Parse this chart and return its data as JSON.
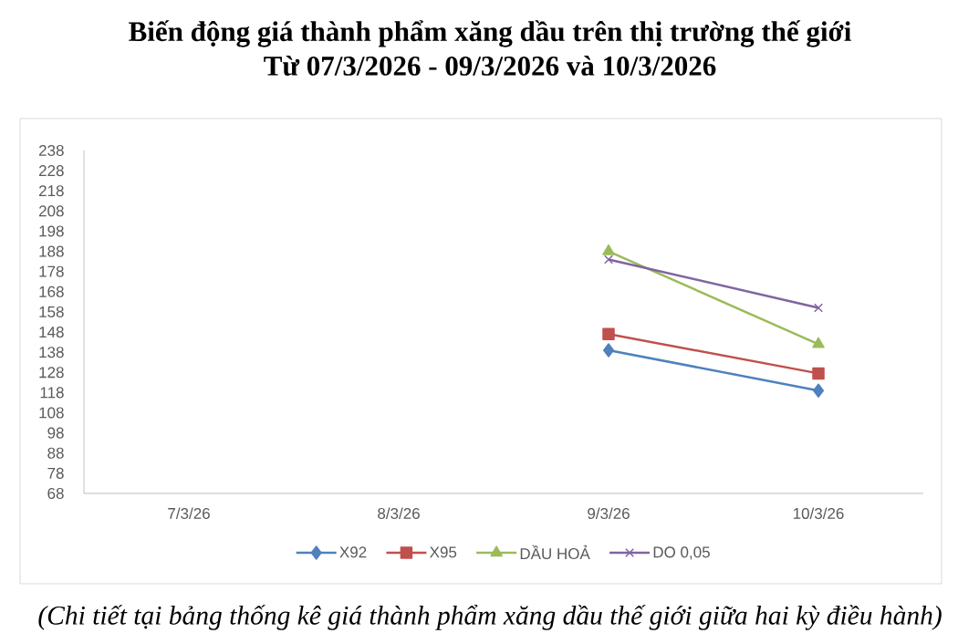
{
  "chart_data": {
    "type": "line",
    "title": "Biến động giá thành phẩm xăng dầu trên thị trường thế giới",
    "subtitle": "Từ 07/3/2026 - 09/3/2026 và 10/3/2026",
    "categories": [
      "7/3/26",
      "8/3/26",
      "9/3/26",
      "10/3/26"
    ],
    "series": [
      {
        "name": "X92",
        "color": "#4f81bd",
        "marker": "diamond",
        "values": [
          null,
          null,
          139,
          119
        ]
      },
      {
        "name": "X95",
        "color": "#c0504d",
        "marker": "square",
        "values": [
          null,
          null,
          147,
          127.5
        ]
      },
      {
        "name": "DẦU HOẢ",
        "color": "#9bbb59",
        "marker": "triangle",
        "values": [
          null,
          null,
          188,
          142
        ]
      },
      {
        "name": "DO 0,05",
        "color": "#8064a2",
        "marker": "cross",
        "values": [
          null,
          null,
          184,
          160
        ]
      }
    ],
    "ylim": [
      68,
      238
    ],
    "yticks": [
      68,
      78,
      88,
      98,
      108,
      118,
      128,
      138,
      148,
      158,
      168,
      178,
      188,
      198,
      208,
      218,
      228,
      238
    ],
    "legend": "bottom",
    "annotations": [
      "(Chi tiết tại bảng thống kê giá thành phẩm xăng dầu thế giới giữa hai kỳ điều hành)"
    ]
  }
}
